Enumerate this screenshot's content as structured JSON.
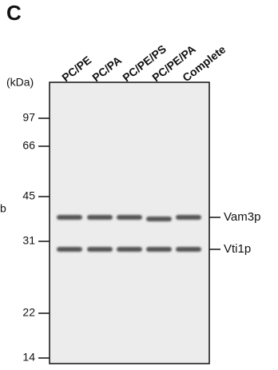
{
  "panel_label": "C",
  "lanes": [
    "PC/PE",
    "PC/PA",
    "PC/PE/PS",
    "PC/PE/PA",
    "Complete"
  ],
  "unit_label": "(kDa)",
  "markers": [
    "97",
    "66",
    "45",
    "31",
    "22",
    "14"
  ],
  "bands": [
    "Vam3p",
    "Vti1p"
  ],
  "edge_text": "b"
}
